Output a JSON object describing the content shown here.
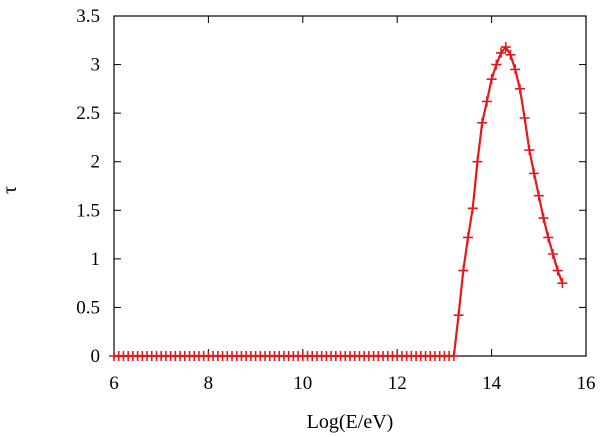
{
  "chart_data": {
    "type": "line",
    "title": "",
    "xlabel": "Log(E/eV)",
    "ylabel": "τ",
    "xlim": [
      6,
      16
    ],
    "ylim": [
      0,
      3.5
    ],
    "x_ticks": [
      6,
      8,
      10,
      12,
      14,
      16
    ],
    "x_tick_labels": [
      "6",
      "8",
      "10",
      "12",
      "14",
      "16"
    ],
    "y_ticks": [
      0,
      0.5,
      1,
      1.5,
      2,
      2.5,
      3,
      3.5
    ],
    "y_tick_labels": [
      "0",
      "0.5",
      "1",
      "1.5",
      "2",
      "2.5",
      "3",
      "3.5"
    ],
    "grid": false,
    "legend": "none",
    "series": [
      {
        "color": "#e31a1c",
        "marker": "plus",
        "x": [
          6.0,
          6.1,
          6.2,
          6.3,
          6.4,
          6.5,
          6.6,
          6.7,
          6.8,
          6.9,
          7.0,
          7.1,
          7.2,
          7.3,
          7.4,
          7.5,
          7.6,
          7.7,
          7.8,
          7.9,
          8.0,
          8.1,
          8.2,
          8.3,
          8.4,
          8.5,
          8.6,
          8.7,
          8.8,
          8.9,
          9.0,
          9.1,
          9.2,
          9.3,
          9.4,
          9.5,
          9.6,
          9.7,
          9.8,
          9.9,
          10.0,
          10.1,
          10.2,
          10.3,
          10.4,
          10.5,
          10.6,
          10.7,
          10.8,
          10.9,
          11.0,
          11.1,
          11.2,
          11.3,
          11.4,
          11.5,
          11.6,
          11.7,
          11.8,
          11.9,
          12.0,
          12.1,
          12.2,
          12.3,
          12.4,
          12.5,
          12.6,
          12.7,
          12.8,
          12.9,
          13.0,
          13.1,
          13.2,
          13.3,
          13.4,
          13.5,
          13.6,
          13.7,
          13.8,
          13.9,
          14.0,
          14.1,
          14.2,
          14.3,
          14.4,
          14.5,
          14.6,
          14.7,
          14.8,
          14.9,
          15.0,
          15.1,
          15.2,
          15.3,
          15.4,
          15.5
        ],
        "y": [
          0,
          0,
          0,
          0,
          0,
          0,
          0,
          0,
          0,
          0,
          0,
          0,
          0,
          0,
          0,
          0,
          0,
          0,
          0,
          0,
          0,
          0,
          0,
          0,
          0,
          0,
          0,
          0,
          0,
          0,
          0,
          0,
          0,
          0,
          0,
          0,
          0,
          0,
          0,
          0,
          0,
          0,
          0,
          0,
          0,
          0,
          0,
          0,
          0,
          0,
          0,
          0,
          0,
          0,
          0,
          0,
          0,
          0,
          0,
          0,
          0,
          0,
          0,
          0,
          0,
          0,
          0,
          0,
          0,
          0,
          0,
          0,
          0,
          0.42,
          0.88,
          1.22,
          1.52,
          2.0,
          2.4,
          2.62,
          2.85,
          3.0,
          3.12,
          3.18,
          3.1,
          2.95,
          2.75,
          2.45,
          2.12,
          1.88,
          1.65,
          1.42,
          1.22,
          1.05,
          0.88,
          0.75
        ]
      }
    ]
  }
}
